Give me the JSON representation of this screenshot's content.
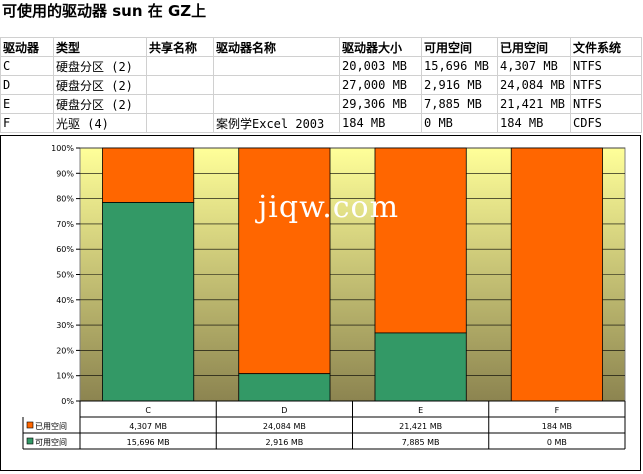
{
  "title": "可使用的驱动器 sun 在 GZ上",
  "table": {
    "headers": [
      "驱动器",
      "类型",
      "共享名称",
      "驱动器名称",
      "驱动器大小",
      "可用空间",
      "已用空间",
      "文件系统"
    ],
    "rows": [
      [
        "C",
        "硬盘分区 (2)",
        "",
        "",
        "20,003 MB",
        "15,696 MB",
        "4,307 MB",
        "NTFS"
      ],
      [
        "D",
        "硬盘分区 (2)",
        "",
        "",
        "27,000 MB",
        "2,916 MB",
        "24,084 MB",
        "NTFS"
      ],
      [
        "E",
        "硬盘分区 (2)",
        "",
        "",
        "29,306 MB",
        "7,885 MB",
        "21,421 MB",
        "NTFS"
      ],
      [
        "F",
        "光驱 (4)",
        "",
        "案例学Excel 2003",
        "184 MB",
        "0 MB",
        "184 MB",
        "CDFS"
      ]
    ]
  },
  "watermark": "jiqw.com",
  "colors": {
    "used": "#ff6600",
    "free": "#339966",
    "plot_top": "#ffff99",
    "plot_bottom": "#8c8450"
  },
  "chart_data": {
    "type": "bar",
    "stacked": "percent",
    "categories": [
      "C",
      "D",
      "E",
      "F"
    ],
    "series": [
      {
        "name": "可用空间",
        "values": [
          15696,
          2916,
          7885,
          0
        ],
        "labels": [
          "15,696 MB",
          "2,916 MB",
          "7,885 MB",
          "0 MB"
        ]
      },
      {
        "name": "已用空间",
        "values": [
          4307,
          24084,
          21421,
          184
        ],
        "labels": [
          "4,307 MB",
          "24,084 MB",
          "21,421 MB",
          "184 MB"
        ]
      }
    ],
    "yticks": [
      "0%",
      "10%",
      "20%",
      "30%",
      "40%",
      "50%",
      "60%",
      "70%",
      "80%",
      "90%",
      "100%"
    ],
    "ylim": [
      0,
      100
    ],
    "legend": "data-table"
  }
}
